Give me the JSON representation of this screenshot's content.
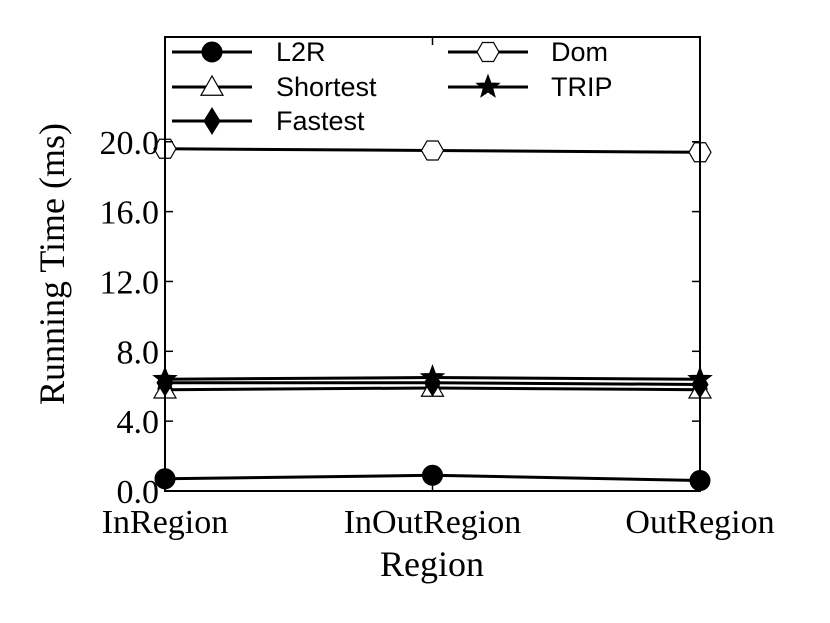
{
  "chart_data": {
    "type": "line",
    "categories": [
      "InRegion",
      "InOutRegion",
      "OutRegion"
    ],
    "xlabel": "Region",
    "ylabel": "Running Time (ms)",
    "ylim": [
      0,
      26
    ],
    "yticks": [
      0,
      4,
      8,
      12,
      16,
      20
    ],
    "ytick_labels": [
      "0.0",
      "4.0",
      "8.0",
      "12.0",
      "16.0",
      "20.0"
    ],
    "grid": false,
    "legend_position": "top",
    "series": [
      {
        "name": "L2R",
        "marker": "circle",
        "values": [
          0.7,
          0.9,
          0.6
        ]
      },
      {
        "name": "Shortest",
        "marker": "triangle-open",
        "values": [
          5.8,
          5.9,
          5.8
        ]
      },
      {
        "name": "Fastest",
        "marker": "diamond",
        "values": [
          6.2,
          6.2,
          6.1
        ]
      },
      {
        "name": "Dom",
        "marker": "hexagon-open",
        "values": [
          19.6,
          19.5,
          19.4
        ]
      },
      {
        "name": "TRIP",
        "marker": "star",
        "values": [
          6.4,
          6.5,
          6.4
        ]
      }
    ],
    "colors": {
      "line": "#000000",
      "background": "#ffffff"
    }
  }
}
